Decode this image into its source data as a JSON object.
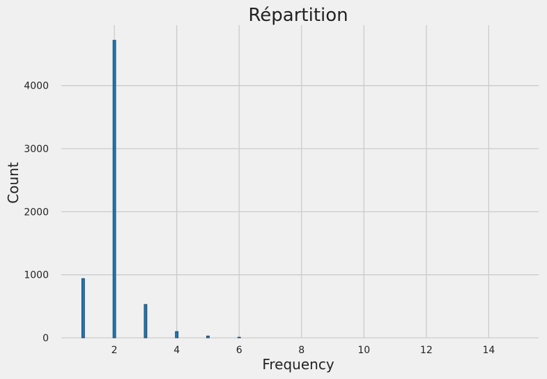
{
  "chart_data": {
    "type": "bar",
    "title": "Répartition",
    "xlabel": "Frequency",
    "ylabel": "Count",
    "x": [
      1,
      2,
      3,
      4,
      5,
      6
    ],
    "values": [
      940,
      4720,
      530,
      100,
      30,
      10
    ],
    "xlim": [
      0.3,
      15.6
    ],
    "ylim": [
      0,
      4960
    ],
    "xticks": [
      2,
      4,
      6,
      8,
      10,
      12,
      14
    ],
    "yticks": [
      0,
      1000,
      2000,
      3000,
      4000
    ],
    "grid": true,
    "bar_color": "#1f77b4",
    "background_color": "#f0f0f0"
  }
}
